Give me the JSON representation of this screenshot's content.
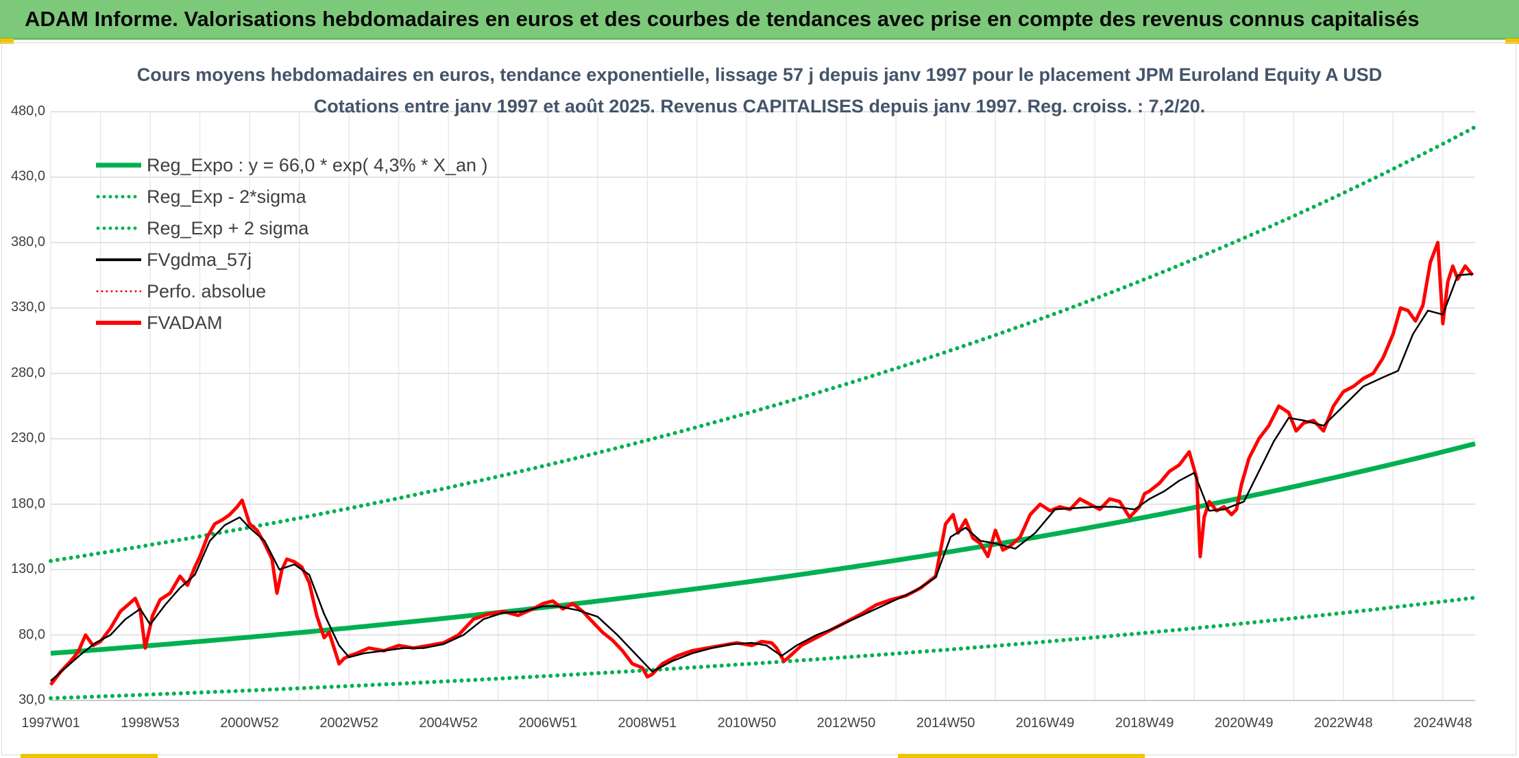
{
  "banner": {
    "title": "ADAM Informe. Valorisations hebdomadaires en euros et des courbes de tendances avec prise en compte des revenus connus capitalisés"
  },
  "colors": {
    "banner": "#7dc97a",
    "trend": "#00b050",
    "smooth": "#000000",
    "price": "#ff0000",
    "accent": "#f2c200"
  },
  "chart_data": {
    "type": "line",
    "title_line1": "Cours moyens hebdomadaires en euros, tendance exponentielle, lissage 57 j depuis janv 1997 pour le placement JPM Euroland Equity A USD",
    "title_line2": "Cotations entre janv 1997 et août 2025. Revenus CAPITALISES depuis janv 1997. Reg. croiss. : 7,2/20.",
    "ylim": [
      30,
      480
    ],
    "yticks": [
      "480,0",
      "430,0",
      "380,0",
      "330,0",
      "280,0",
      "230,0",
      "180,0",
      "130,0",
      "80,0",
      "30,0"
    ],
    "xlim": [
      1997.0,
      2025.65
    ],
    "xticks": [
      {
        "label": "1997W01",
        "x": 1997.0
      },
      {
        "label": "1998W53",
        "x": 1999.0
      },
      {
        "label": "2000W52",
        "x": 2001.0
      },
      {
        "label": "2002W52",
        "x": 2003.0
      },
      {
        "label": "2004W52",
        "x": 2005.0
      },
      {
        "label": "2006W51",
        "x": 2007.0
      },
      {
        "label": "2008W51",
        "x": 2009.0
      },
      {
        "label": "2010W50",
        "x": 2011.0
      },
      {
        "label": "2012W50",
        "x": 2013.0
      },
      {
        "label": "2014W50",
        "x": 2015.0
      },
      {
        "label": "2016W49",
        "x": 2017.0
      },
      {
        "label": "2018W49",
        "x": 2019.0
      },
      {
        "label": "2020W49",
        "x": 2021.0
      },
      {
        "label": "2022W48",
        "x": 2023.0
      },
      {
        "label": "2024W48",
        "x": 2025.0
      }
    ],
    "legend": [
      "Reg_Expo : y = 66,0 * exp( 4,3% *  X_an )",
      "Reg_Exp - 2*sigma",
      "Reg_Exp + 2 sigma",
      "FVgdma_57j",
      "Perfo. absolue",
      "FVADAM"
    ],
    "regression": {
      "a": 66.0,
      "rate": 0.043,
      "lower_factor": 0.48,
      "upper_factor": 2.07
    },
    "series": [
      {
        "name": "FVADAM",
        "x": [
          1997.0,
          1997.2,
          1997.4,
          1997.55,
          1997.7,
          1997.85,
          1998.0,
          1998.2,
          1998.4,
          1998.55,
          1998.7,
          1998.8,
          1998.9,
          1999.05,
          1999.2,
          1999.4,
          1999.6,
          1999.75,
          1999.9,
          2000.0,
          2000.15,
          2000.3,
          2000.45,
          2000.6,
          2000.75,
          2000.85,
          2001.0,
          2001.15,
          2001.3,
          2001.45,
          2001.55,
          2001.65,
          2001.75,
          2001.9,
          2002.05,
          2002.2,
          2002.35,
          2002.5,
          2002.6,
          2002.7,
          2002.8,
          2002.9,
          2003.0,
          2003.15,
          2003.4,
          2003.7,
          2004.0,
          2004.3,
          2004.6,
          2004.9,
          2005.2,
          2005.5,
          2005.8,
          2006.1,
          2006.4,
          2006.7,
          2006.9,
          2007.1,
          2007.3,
          2007.5,
          2007.7,
          2007.9,
          2008.1,
          2008.3,
          2008.5,
          2008.7,
          2008.9,
          2009.0,
          2009.1,
          2009.3,
          2009.6,
          2009.9,
          2010.2,
          2010.5,
          2010.8,
          2011.1,
          2011.3,
          2011.5,
          2011.6,
          2011.75,
          2011.9,
          2012.1,
          2012.4,
          2012.7,
          2013.0,
          2013.3,
          2013.6,
          2013.9,
          2014.2,
          2014.5,
          2014.8,
          2015.0,
          2015.15,
          2015.25,
          2015.4,
          2015.55,
          2015.7,
          2015.85,
          2016.0,
          2016.15,
          2016.3,
          2016.5,
          2016.7,
          2016.9,
          2017.1,
          2017.3,
          2017.5,
          2017.7,
          2017.9,
          2018.1,
          2018.3,
          2018.5,
          2018.7,
          2018.9,
          2019.0,
          2019.1,
          2019.3,
          2019.5,
          2019.7,
          2019.9,
          2020.05,
          2020.12,
          2020.2,
          2020.3,
          2020.45,
          2020.6,
          2020.75,
          2020.85,
          2020.95,
          2021.1,
          2021.3,
          2021.5,
          2021.7,
          2021.9,
          2022.05,
          2022.2,
          2022.4,
          2022.6,
          2022.8,
          2023.0,
          2023.2,
          2023.4,
          2023.6,
          2023.8,
          2024.0,
          2024.15,
          2024.3,
          2024.45,
          2024.6,
          2024.75,
          2024.9,
          2025.0,
          2025.1,
          2025.2,
          2025.3,
          2025.45,
          2025.6
        ],
        "values": [
          42,
          52,
          60,
          67,
          80,
          72,
          75,
          85,
          98,
          103,
          108,
          99,
          70,
          95,
          107,
          112,
          125,
          118,
          132,
          140,
          155,
          165,
          168,
          172,
          178,
          183,
          165,
          160,
          150,
          138,
          112,
          130,
          138,
          136,
          132,
          120,
          95,
          78,
          82,
          70,
          58,
          62,
          64,
          66,
          70,
          68,
          72,
          70,
          72,
          74,
          80,
          92,
          96,
          98,
          95,
          100,
          104,
          106,
          100,
          104,
          98,
          90,
          82,
          76,
          68,
          58,
          55,
          48,
          50,
          58,
          64,
          68,
          70,
          72,
          74,
          72,
          75,
          74,
          70,
          60,
          65,
          72,
          78,
          84,
          90,
          96,
          103,
          107,
          110,
          116,
          125,
          165,
          172,
          158,
          168,
          154,
          150,
          140,
          160,
          145,
          148,
          155,
          172,
          180,
          175,
          178,
          176,
          184,
          180,
          176,
          184,
          182,
          170,
          178,
          188,
          190,
          196,
          205,
          210,
          220,
          200,
          140,
          170,
          182,
          175,
          178,
          172,
          176,
          195,
          215,
          230,
          240,
          255,
          250,
          236,
          242,
          244,
          236,
          255,
          266,
          270,
          276,
          280,
          292,
          310,
          330,
          328,
          320,
          332,
          365,
          380,
          318,
          350,
          362,
          352,
          362,
          355
        ]
      },
      {
        "name": "FVgdma_57j",
        "x": [
          1997.0,
          1997.3,
          1997.6,
          1997.9,
          1998.2,
          1998.5,
          1998.8,
          1999.0,
          1999.3,
          1999.6,
          1999.9,
          2000.2,
          2000.5,
          2000.8,
          2001.0,
          2001.3,
          2001.6,
          2001.9,
          2002.2,
          2002.5,
          2002.8,
          2003.0,
          2003.3,
          2003.7,
          2004.1,
          2004.5,
          2004.9,
          2005.3,
          2005.7,
          2006.1,
          2006.5,
          2006.9,
          2007.2,
          2007.6,
          2008.0,
          2008.4,
          2008.8,
          2009.1,
          2009.5,
          2009.9,
          2010.3,
          2010.7,
          2011.1,
          2011.4,
          2011.7,
          2012.0,
          2012.4,
          2012.8,
          2013.2,
          2013.6,
          2014.0,
          2014.4,
          2014.8,
          2015.1,
          2015.4,
          2015.7,
          2016.0,
          2016.4,
          2016.8,
          2017.2,
          2017.6,
          2018.0,
          2018.4,
          2018.8,
          2019.1,
          2019.4,
          2019.7,
          2020.0,
          2020.3,
          2020.6,
          2021.0,
          2021.3,
          2021.6,
          2021.9,
          2022.2,
          2022.6,
          2023.0,
          2023.4,
          2023.8,
          2024.1,
          2024.4,
          2024.7,
          2025.0,
          2025.3,
          2025.6
        ],
        "values": [
          45,
          55,
          65,
          74,
          80,
          92,
          100,
          88,
          103,
          116,
          126,
          152,
          164,
          170,
          162,
          152,
          130,
          134,
          126,
          96,
          72,
          63,
          66,
          68,
          70,
          70,
          73,
          80,
          92,
          97,
          98,
          102,
          102,
          99,
          94,
          80,
          64,
          52,
          60,
          66,
          70,
          73,
          74,
          72,
          64,
          72,
          80,
          86,
          93,
          100,
          107,
          114,
          124,
          155,
          162,
          152,
          150,
          146,
          158,
          176,
          177,
          178,
          178,
          176,
          184,
          190,
          198,
          204,
          175,
          176,
          182,
          205,
          228,
          246,
          244,
          240,
          255,
          270,
          277,
          282,
          310,
          328,
          325,
          355,
          356
        ]
      }
    ]
  }
}
